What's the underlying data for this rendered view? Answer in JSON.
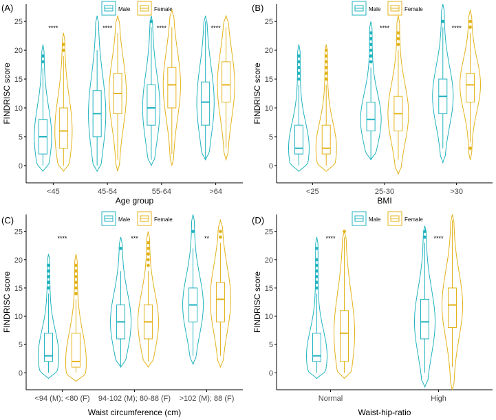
{
  "colors": {
    "male": "#1FB3BF",
    "female": "#E3B31A",
    "axis": "#000000"
  },
  "legend_labels": {
    "male": "Male",
    "female": "Female"
  },
  "y_axis_label": "FINDRISC score",
  "chart_data": [
    {
      "type": "violin",
      "panel": "(A)",
      "xlabel": "Age group",
      "ylabel": "FINDRISC score",
      "ylim": [
        -3,
        28
      ],
      "yticks": [
        0,
        5,
        10,
        15,
        20,
        25
      ],
      "categories": [
        "<45",
        "45-54",
        "55-64",
        ">64"
      ],
      "significance": [
        "****",
        "****",
        "****",
        "****"
      ],
      "series": [
        {
          "name": "Male",
          "min": [
            -1,
            -1,
            0,
            1
          ],
          "max": [
            21,
            26,
            26,
            26
          ],
          "q1": [
            2,
            5,
            7,
            7
          ],
          "median": [
            5,
            9,
            10,
            11
          ],
          "q3": [
            8,
            13,
            14,
            14.5
          ],
          "whisker_low": [
            0,
            0,
            1,
            1
          ],
          "whisker_high": [
            17,
            20,
            24,
            25
          ],
          "outliers": [
            [
              18,
              19
            ],
            [],
            [
              25
            ],
            []
          ]
        },
        {
          "name": "Female",
          "min": [
            -1,
            -1,
            0,
            1
          ],
          "max": [
            23,
            26,
            27,
            26
          ],
          "q1": [
            3,
            9,
            10,
            11
          ],
          "median": [
            6,
            12.5,
            14,
            14
          ],
          "q3": [
            10,
            16,
            17,
            18
          ],
          "whisker_low": [
            0,
            1,
            2,
            3
          ],
          "whisker_high": [
            19,
            23,
            24,
            24
          ],
          "outliers": [
            [
              20,
              21
            ],
            [],
            [],
            []
          ]
        }
      ]
    },
    {
      "type": "violin",
      "panel": "(B)",
      "xlabel": "BMI",
      "ylabel": "FINDRISC score",
      "ylim": [
        -3,
        28
      ],
      "yticks": [
        0,
        5,
        10,
        15,
        20,
        25
      ],
      "categories": [
        "<25",
        "25-30",
        ">30"
      ],
      "significance": [
        "",
        "****",
        "****"
      ],
      "series": [
        {
          "name": "Male",
          "min": [
            -1,
            1,
            0.5
          ],
          "max": [
            21,
            25,
            28
          ],
          "q1": [
            2,
            6,
            9
          ],
          "median": [
            3,
            8,
            12
          ],
          "q3": [
            7,
            11,
            15
          ],
          "whisker_low": [
            0,
            1,
            3
          ],
          "whisker_high": [
            14,
            17,
            24
          ],
          "outliers": [
            [
              15,
              16,
              17,
              18,
              19
            ],
            [
              18,
              19,
              20,
              21,
              22,
              23
            ],
            [
              25
            ]
          ]
        },
        {
          "name": "Female",
          "min": [
            -1,
            -1.5,
            1
          ],
          "max": [
            21,
            26,
            27
          ],
          "q1": [
            2,
            6,
            11
          ],
          "median": [
            3,
            9,
            14
          ],
          "q3": [
            7,
            12,
            16
          ],
          "whisker_low": [
            0,
            1,
            4
          ],
          "whisker_high": [
            14,
            20,
            23
          ],
          "outliers": [
            [
              15,
              16,
              17,
              18,
              19,
              20
            ],
            [
              21,
              22,
              23
            ],
            [
              3,
              24,
              25
            ]
          ]
        }
      ]
    },
    {
      "type": "violin",
      "panel": "(C)",
      "xlabel": "Waist circumference (cm)",
      "ylabel": "FINDRISC score",
      "ylim": [
        -3,
        28
      ],
      "yticks": [
        0,
        5,
        10,
        15,
        20,
        25
      ],
      "categories": [
        "<94 (M); <80 (F)",
        "94-102 (M); 80-88 (F)",
        ">102 (M); 88 (F)"
      ],
      "significance": [
        "****",
        "***",
        "**"
      ],
      "series": [
        {
          "name": "Male",
          "min": [
            -1,
            1,
            1.5
          ],
          "max": [
            21,
            24,
            28
          ],
          "q1": [
            2,
            6,
            9
          ],
          "median": [
            3,
            9,
            12
          ],
          "q3": [
            7,
            12,
            15
          ],
          "whisker_low": [
            0,
            1,
            3
          ],
          "whisker_high": [
            14,
            18,
            22
          ],
          "outliers": [
            [
              15,
              16,
              17,
              18,
              19
            ],
            [
              22
            ],
            [
              25
            ]
          ]
        },
        {
          "name": "Female",
          "min": [
            -1.5,
            1,
            1
          ],
          "max": [
            21,
            25,
            27
          ],
          "q1": [
            1,
            6,
            9
          ],
          "median": [
            2,
            9,
            13
          ],
          "q3": [
            7,
            12,
            16
          ],
          "whisker_low": [
            0,
            2,
            3
          ],
          "whisker_high": [
            13,
            18,
            23
          ],
          "outliers": [
            [
              14,
              15,
              16,
              17,
              18,
              19
            ],
            [
              19,
              20,
              21,
              22,
              23
            ],
            [
              24,
              25
            ]
          ]
        }
      ]
    },
    {
      "type": "violin",
      "panel": "(D)",
      "xlabel": "Waist-hip-ratio",
      "ylabel": "FINDRISC score",
      "ylim": [
        -3,
        28
      ],
      "yticks": [
        0,
        5,
        10,
        15,
        20,
        25
      ],
      "categories": [
        "Normal",
        "High"
      ],
      "significance": [
        "****",
        "****"
      ],
      "series": [
        {
          "name": "Male",
          "min": [
            -1,
            -2.5
          ],
          "max": [
            24,
            26
          ],
          "q1": [
            2,
            6
          ],
          "median": [
            3,
            9
          ],
          "q3": [
            7,
            13
          ],
          "whisker_low": [
            0,
            0
          ],
          "whisker_high": [
            14,
            23
          ],
          "outliers": [
            [
              15,
              16,
              17,
              18,
              19,
              20,
              22
            ],
            [
              24,
              25
            ]
          ]
        },
        {
          "name": "Female",
          "min": [
            -1,
            -3
          ],
          "max": [
            25,
            28
          ],
          "q1": [
            2,
            8
          ],
          "median": [
            7,
            12
          ],
          "q3": [
            11,
            15
          ],
          "whisker_low": [
            0,
            1
          ],
          "whisker_high": [
            24,
            27
          ],
          "outliers": [
            [
              25
            ],
            []
          ]
        }
      ]
    }
  ]
}
